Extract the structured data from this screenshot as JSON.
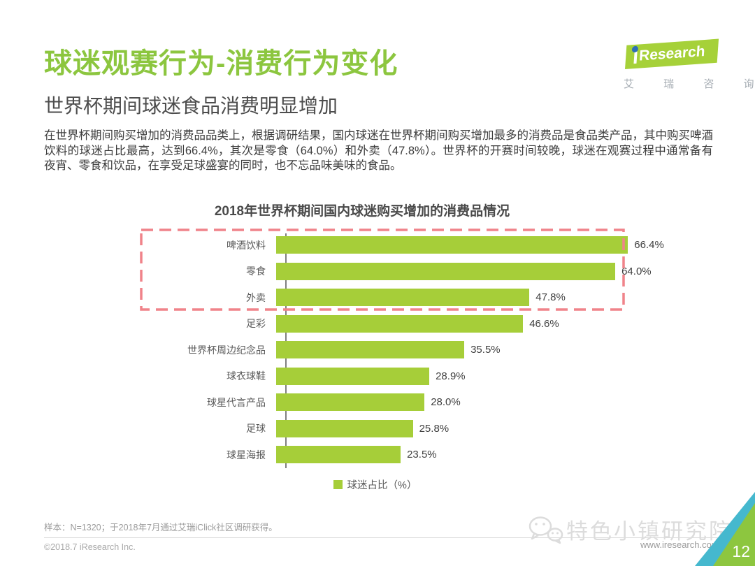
{
  "header": {
    "title": "球迷观赛行为-消费行为变化",
    "subtitle": "世界杯期间球迷食品消费明显增加"
  },
  "logo": {
    "i_stem": "",
    "text_en": "Research",
    "text_cn": "艾 瑞 咨 询"
  },
  "body": {
    "paragraph": "在世界杯期间购买增加的消费品品类上，根据调研结果，国内球迷在世界杯期间购买增加最多的消费品是食品类产品，其中购买啤酒饮料的球迷占比最高，达到66.4%，其次是零食（64.0%）和外卖（47.8%）。世界杯的开赛时间较晚，球迷在观赛过程中通常备有夜宵、零食和饮品，在享受足球盛宴的同时，也不忘品味美味的食品。"
  },
  "chart_data": {
    "type": "bar",
    "orientation": "horizontal",
    "title": "2018年世界杯期间国内球迷购买增加的消费品情况",
    "categories": [
      "啤酒饮料",
      "零食",
      "外卖",
      "足彩",
      "世界杯周边纪念品",
      "球衣球鞋",
      "球星代言产品",
      "足球",
      "球星海报"
    ],
    "values": [
      66.4,
      64.0,
      47.8,
      46.6,
      35.5,
      28.9,
      28.0,
      25.8,
      23.5
    ],
    "value_labels": [
      "66.4%",
      "64.0%",
      "47.8%",
      "46.6%",
      "35.5%",
      "28.9%",
      "28.0%",
      "25.8%",
      "23.5%"
    ],
    "legend": "球迷占比（%）",
    "xlim": [
      0,
      79
    ],
    "grid": false,
    "legend_position": "bottom-center",
    "highlight_rows": [
      0,
      1,
      2
    ],
    "bar_color": "#a6ce39"
  },
  "footer": {
    "sample_note": "样本：N=1320；于2018年7月通过艾瑞iClick社区调研获得。",
    "copyright": "©2018.7 iResearch Inc.",
    "watermark": "特色小镇研究院",
    "url": "www.iresearch.com.cn",
    "page_number": "12"
  },
  "colors": {
    "title_green": "#8cc63f",
    "bar_green": "#a6ce39",
    "highlight_red": "#f0838a",
    "axis_gray": "#808080",
    "corner_green": "#8dc63f",
    "corner_cyan": "#45b8ce",
    "logo_green": "#a6d139",
    "logo_dot_blue": "#2e6fb7",
    "watermark_gray": "#dcdcdc"
  }
}
